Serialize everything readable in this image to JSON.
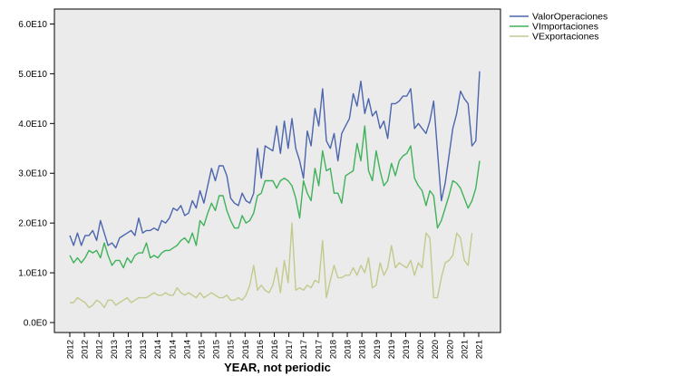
{
  "chart_data": {
    "type": "line",
    "title": "",
    "xlabel": "YEAR, not periodic",
    "ylabel": "",
    "x_tick_labels": [
      "2012",
      "2012",
      "2012",
      "2013",
      "2013",
      "2013",
      "2014",
      "2014",
      "2014",
      "2015",
      "2015",
      "2015",
      "2016",
      "2016",
      "2016",
      "2017",
      "2017",
      "2017",
      "2018",
      "2018",
      "2018",
      "2019",
      "2019",
      "2019",
      "2020",
      "2020",
      "2020",
      "2021",
      "2021"
    ],
    "y_ticks": [
      {
        "value": 0,
        "label": "0.0E0"
      },
      {
        "value": 10000000000,
        "label": "1.0E10"
      },
      {
        "value": 20000000000,
        "label": "2.0E10"
      },
      {
        "value": 30000000000,
        "label": "3.0E10"
      },
      {
        "value": 40000000000,
        "label": "4.0E10"
      },
      {
        "value": 50000000000,
        "label": "5.0E10"
      },
      {
        "value": 60000000000,
        "label": "6.0E10"
      }
    ],
    "ylim": [
      -2000000000,
      63000000000
    ],
    "legend_position": "top-right",
    "grid": false,
    "background": "#ebebeb",
    "series": [
      {
        "name": "ValorOperaciones",
        "color": "#4c66ad",
        "values_e10": [
          1.75,
          1.55,
          1.8,
          1.55,
          1.75,
          1.75,
          1.85,
          1.65,
          2.05,
          1.8,
          1.55,
          1.6,
          1.5,
          1.7,
          1.75,
          1.8,
          1.85,
          1.75,
          2.1,
          1.8,
          1.85,
          1.85,
          1.9,
          1.85,
          2.05,
          2.0,
          2.1,
          2.3,
          2.25,
          2.35,
          2.15,
          2.2,
          2.45,
          2.3,
          2.65,
          2.4,
          2.75,
          3.1,
          2.85,
          3.15,
          3.15,
          2.95,
          2.5,
          2.4,
          2.35,
          2.6,
          2.45,
          2.4,
          2.6,
          3.5,
          2.9,
          3.55,
          3.5,
          3.45,
          3.95,
          3.4,
          4.05,
          3.5,
          4.1,
          3.5,
          3.25,
          2.9,
          3.85,
          3.55,
          4.3,
          3.95,
          4.7,
          3.65,
          3.5,
          3.8,
          3.25,
          3.8,
          3.95,
          4.1,
          4.6,
          4.35,
          4.85,
          4.2,
          4.5,
          4.15,
          4.25,
          3.9,
          4.05,
          3.7,
          4.4,
          4.4,
          4.45,
          4.55,
          4.55,
          4.7,
          3.9,
          4.0,
          3.9,
          3.8,
          4.05,
          4.45,
          3.45,
          2.45,
          2.8,
          3.35,
          3.9,
          4.2,
          4.65,
          4.5,
          4.4,
          3.55,
          3.65,
          5.05
        ]
      },
      {
        "name": "VImportaciones",
        "color": "#3fb25a",
        "values_e10": [
          1.35,
          1.2,
          1.3,
          1.2,
          1.3,
          1.45,
          1.4,
          1.45,
          1.3,
          1.6,
          1.35,
          1.15,
          1.25,
          1.25,
          1.1,
          1.3,
          1.2,
          1.35,
          1.4,
          1.4,
          1.6,
          1.3,
          1.35,
          1.3,
          1.4,
          1.45,
          1.45,
          1.5,
          1.55,
          1.65,
          1.7,
          1.6,
          1.8,
          1.55,
          2.05,
          1.95,
          2.2,
          2.4,
          2.25,
          2.55,
          2.55,
          2.25,
          2.05,
          1.9,
          1.9,
          2.15,
          2.0,
          2.05,
          2.2,
          2.55,
          2.6,
          2.85,
          2.85,
          2.85,
          2.7,
          2.85,
          2.9,
          2.85,
          2.75,
          2.5,
          2.1,
          2.85,
          2.6,
          2.45,
          3.1,
          2.75,
          3.45,
          3.05,
          3.1,
          2.6,
          2.6,
          2.4,
          2.95,
          3.0,
          3.05,
          3.6,
          3.25,
          3.95,
          3.05,
          2.85,
          3.45,
          3.05,
          2.75,
          2.85,
          3.2,
          2.95,
          3.25,
          3.35,
          3.4,
          3.55,
          2.9,
          2.75,
          2.65,
          2.35,
          2.65,
          2.55,
          1.9,
          2.05,
          2.3,
          2.55,
          2.85,
          2.8,
          2.7,
          2.5,
          2.3,
          2.45,
          2.7,
          3.25
        ]
      },
      {
        "name": "VExportaciones",
        "color": "#c4c98c",
        "values_e10": [
          0.4,
          0.4,
          0.5,
          0.45,
          0.4,
          0.3,
          0.35,
          0.45,
          0.4,
          0.3,
          0.45,
          0.45,
          0.35,
          0.4,
          0.45,
          0.5,
          0.4,
          0.45,
          0.5,
          0.5,
          0.5,
          0.55,
          0.6,
          0.55,
          0.55,
          0.6,
          0.55,
          0.55,
          0.7,
          0.6,
          0.55,
          0.6,
          0.55,
          0.5,
          0.6,
          0.5,
          0.55,
          0.6,
          0.55,
          0.5,
          0.5,
          0.55,
          0.45,
          0.45,
          0.5,
          0.45,
          0.55,
          0.75,
          1.15,
          0.65,
          0.75,
          0.65,
          0.6,
          0.75,
          1.1,
          0.6,
          1.25,
          0.8,
          2.0,
          0.65,
          0.7,
          0.65,
          0.75,
          0.7,
          0.85,
          0.8,
          1.65,
          0.5,
          0.85,
          1.15,
          0.9,
          0.9,
          0.95,
          0.95,
          1.1,
          0.95,
          1.15,
          1.0,
          1.3,
          0.7,
          0.75,
          1.2,
          0.95,
          1.1,
          1.55,
          1.1,
          1.2,
          1.15,
          1.1,
          1.25,
          0.95,
          1.2,
          1.1,
          1.8,
          1.7,
          0.5,
          0.5,
          0.9,
          1.2,
          1.25,
          1.35,
          1.8,
          1.7,
          1.25,
          1.15,
          1.8
        ]
      }
    ]
  }
}
